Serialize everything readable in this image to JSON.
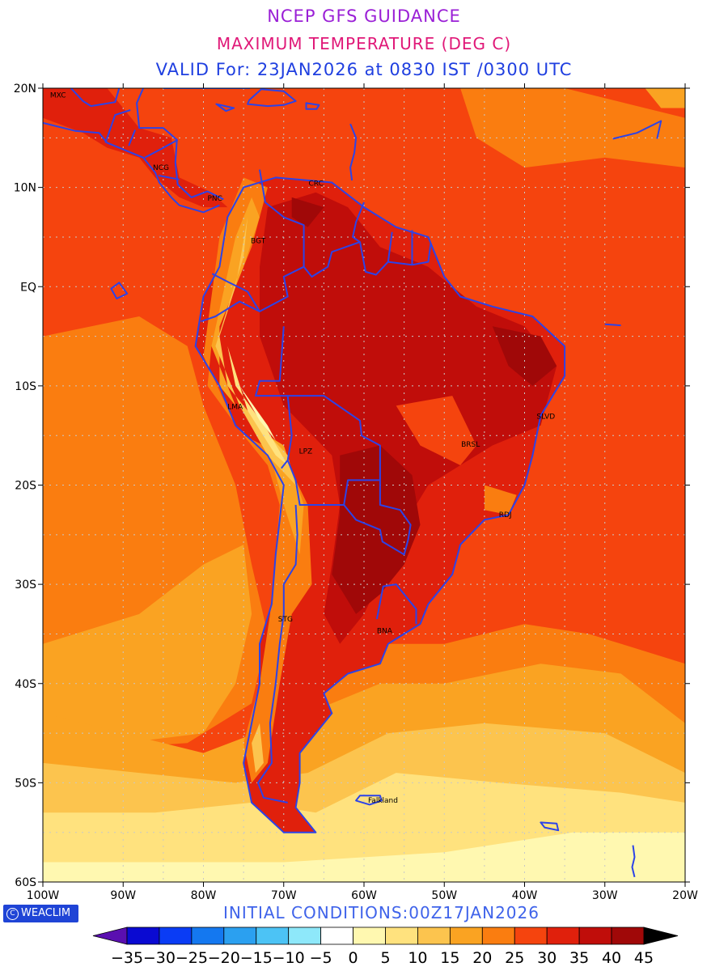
{
  "titles": {
    "line1": "NCEP GFS GUIDANCE",
    "line2": "MAXIMUM TEMPERATURE (DEG C)",
    "line3": "VALID For: 23JAN2026 at 0830 IST /0300 UTC"
  },
  "map": {
    "lat_labels": [
      "20N",
      "10N",
      "EQ",
      "10S",
      "20S",
      "30S",
      "40S",
      "50S",
      "60S"
    ],
    "lon_labels": [
      "100W",
      "90W",
      "80W",
      "70W",
      "60W",
      "50W",
      "40W",
      "30W",
      "20W"
    ],
    "cities": [
      {
        "code": "MXC",
        "lon": -99.1,
        "lat": 19.4
      },
      {
        "code": "NCG",
        "lon": -86.3,
        "lat": 12.1
      },
      {
        "code": "CRC",
        "lon": -66.9,
        "lat": 10.5
      },
      {
        "code": "PNC",
        "lon": -79.5,
        "lat": 9.0
      },
      {
        "code": "BGT",
        "lon": -74.1,
        "lat": 4.7
      },
      {
        "code": "LMA",
        "lon": -77.0,
        "lat": -12.0
      },
      {
        "code": "LPZ",
        "lon": -68.1,
        "lat": -16.5
      },
      {
        "code": "BRSL",
        "lon": -47.9,
        "lat": -15.8
      },
      {
        "code": "SLVD",
        "lon": -38.5,
        "lat": -13.0
      },
      {
        "code": "RDJ",
        "lon": -43.2,
        "lat": -22.9
      },
      {
        "code": "STG",
        "lon": -70.7,
        "lat": -33.4
      },
      {
        "code": "BNA",
        "lon": -58.4,
        "lat": -34.6
      },
      {
        "code": "Falkland",
        "lon": -59.5,
        "lat": -51.7
      }
    ]
  },
  "colorbar": {
    "labels": [
      "-35",
      "-30",
      "-25",
      "-20",
      "-15",
      "-10",
      "-5",
      "0",
      "5",
      "10",
      "15",
      "20",
      "25",
      "30",
      "35",
      "40",
      "45"
    ],
    "colors": [
      "#5a0fb0",
      "#0a0ad2",
      "#0a3cf5",
      "#1478f0",
      "#2ba0f0",
      "#4cc3f5",
      "#8ee8fa",
      "#ffffff",
      "#fff8b0",
      "#ffe27e",
      "#fcc44e",
      "#faa322",
      "#fa7d10",
      "#f5440e",
      "#e0200c",
      "#c00d0a",
      "#a00808",
      "#000000"
    ]
  },
  "logo": {
    "label": "WEACLIM",
    "symbol": "C"
  },
  "initial_conditions": "INITIAL  CONDITIONS:00Z17JAN2026"
}
